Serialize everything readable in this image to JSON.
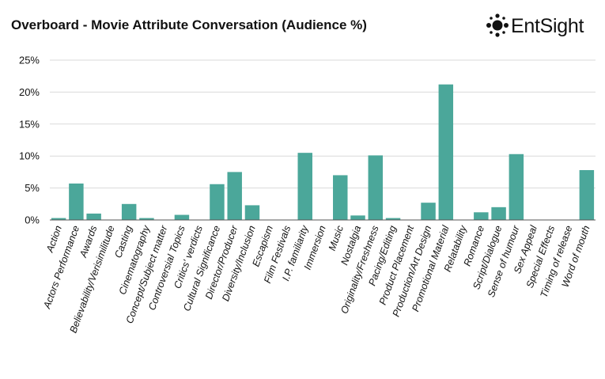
{
  "header": {
    "title": "Overboard - Movie Attribute Conversation (Audience %)",
    "logo_text": "EntSight",
    "logo_icon": "dot-cluster-icon"
  },
  "colors": {
    "bar": "#4ba79a",
    "grid": "#d9d9d9",
    "axis": "#555555",
    "text": "#111111"
  },
  "chart_data": {
    "type": "bar",
    "title": "Overboard - Movie Attribute Conversation (Audience %)",
    "xlabel": "",
    "ylabel": "",
    "ylim": [
      0,
      25
    ],
    "yticks": [
      0,
      5,
      10,
      15,
      20,
      25
    ],
    "ytick_labels": [
      "0%",
      "5%",
      "10%",
      "15%",
      "20%",
      "25%"
    ],
    "grid": "horizontal",
    "categories": [
      "Action",
      "Actors Performance",
      "Awards",
      "Believability/Verisimilitude",
      "Casting",
      "Cinematography",
      "Concept/Subject matter",
      "Controversial Topics",
      "Critics' verdicts",
      "Cultural Significance",
      "Director/Producer",
      "Diversity/Inclusion",
      "Escapism",
      "Film Festivals",
      "I.P. familiarity",
      "Immersion",
      "Music",
      "Nostalgia",
      "Originality/Freshness",
      "Pacing/Editing",
      "Product Placement",
      "Production/Art Design",
      "Promotional Material",
      "Relatability",
      "Romance",
      "Script/Dialogue",
      "Sense of humour",
      "Sex Appeal",
      "Special Effects",
      "Timing of release",
      "Word of mouth"
    ],
    "values": [
      0.3,
      5.7,
      1.0,
      0,
      2.5,
      0.3,
      0,
      0.8,
      0,
      5.6,
      7.5,
      2.3,
      0,
      0,
      10.5,
      0,
      7.0,
      0.7,
      10.1,
      0.3,
      0,
      2.7,
      21.2,
      0,
      1.2,
      2.0,
      10.3,
      0,
      0,
      0,
      7.8
    ]
  }
}
